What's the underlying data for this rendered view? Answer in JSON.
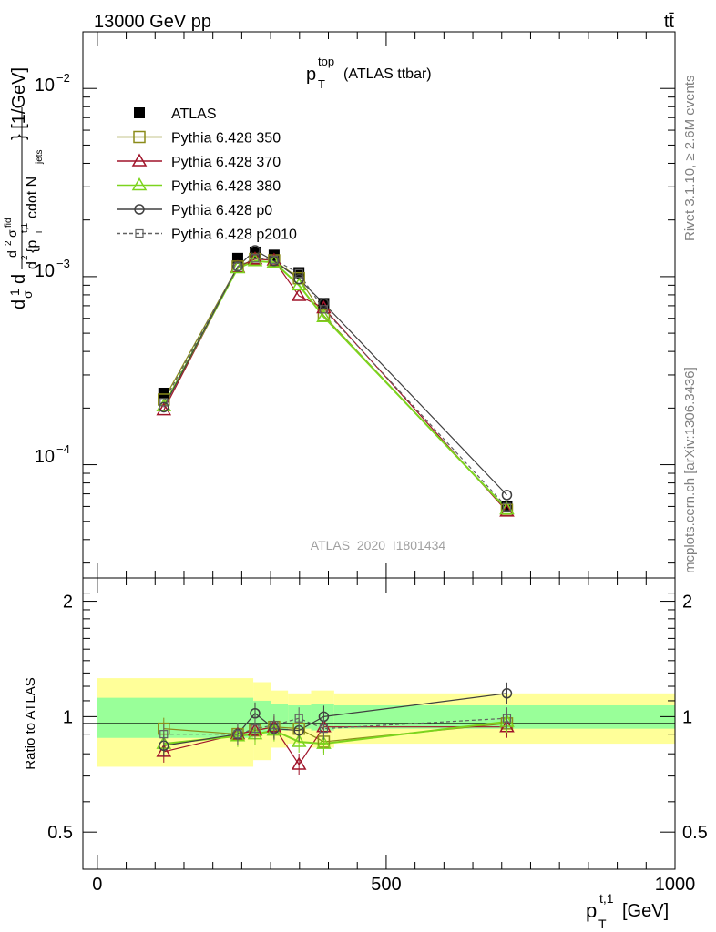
{
  "header": {
    "energy_label": "13000 GeV pp",
    "process_label": "tt̄",
    "title_main": "p",
    "title_sup": "top",
    "title_sub": "T",
    "title_suffix": "(ATLAS ttbar)",
    "analysis_id": "ATLAS_2020_I1801434",
    "side_rivet": "Rivet 3.1.10, ≥ 2.6M events",
    "side_mcplots": "mcplots.cern.ch [arXiv:1306.3436]"
  },
  "axes": {
    "ylabel_main": "d²σ^{fid} / (dp_T^{t,1} d N_jets) / σ [1/GeV]",
    "ylabel_ratio": "Ratio to ATLAS",
    "xlabel": "p_T^{t,1} [GeV]",
    "xlabel_p": "p",
    "xlabel_sub": "T",
    "xlabel_sup": "t,1",
    "xlabel_unit": "[GeV]",
    "ylabel_d": "d",
    "ylabel_1": "1",
    "ylabel_sigma": "σ",
    "ylabel_d2": "d",
    "ylabel_d2sup": "2",
    "ylabel_sigfid": "σ",
    "ylabel_sigfid_sup": "fid",
    "ylabel_bottom": "d",
    "ylabel_bottom2": "2",
    "ylabel_brace": "{p",
    "ylabel_brace_sub": "T",
    "ylabel_brace_sup": "t,1",
    "ylabel_cdot": "cdot N",
    "ylabel_jets": "jets",
    "ylabel_close": "} [1/GeV]",
    "main_ytick_base": "10",
    "main_ytick_exp_top": "−2",
    "main_ytick_exp_mid": "−3",
    "main_ytick_exp_bot": "−4",
    "ratio_yticks": [
      "0.5",
      "1",
      "2"
    ],
    "xticks": [
      "0",
      "500",
      "1000"
    ],
    "xlim": [
      -25,
      1000
    ],
    "ylim_main": [
      2.5e-05,
      0.02
    ],
    "ylim_ratio": [
      0.4,
      2.3
    ]
  },
  "legend": [
    {
      "label": "ATLAS",
      "color": "#000000",
      "marker": "filled-square",
      "dashed": false
    },
    {
      "label": "Pythia 6.428 350",
      "color": "#8b8b1a",
      "marker": "open-square",
      "dashed": false
    },
    {
      "label": "Pythia 6.428 370",
      "color": "#a0142a",
      "marker": "open-triangle",
      "dashed": false
    },
    {
      "label": "Pythia 6.428 380",
      "color": "#7cd41e",
      "marker": "open-triangle",
      "dashed": false
    },
    {
      "label": "Pythia 6.428 p0",
      "color": "#404040",
      "marker": "open-circle",
      "dashed": false
    },
    {
      "label": "Pythia 6.428 p2010",
      "color": "#606060",
      "marker": "open-square-small",
      "dashed": true
    }
  ],
  "chart_data": {
    "type": "scatter",
    "x_scale": "linear",
    "y_scale": "log",
    "bins": [
      [
        0,
        230
      ],
      [
        230,
        270
      ],
      [
        270,
        300
      ],
      [
        300,
        330
      ],
      [
        330,
        370
      ],
      [
        370,
        410
      ],
      [
        410,
        1000
      ]
    ],
    "x": [
      115,
      243,
      273,
      306,
      349,
      392,
      709
    ],
    "uncertainty_band": {
      "inner": [
        0.12,
        0.12,
        0.1,
        0.08,
        0.07,
        0.08,
        0.07
      ],
      "outer": [
        0.26,
        0.26,
        0.23,
        0.17,
        0.15,
        0.17,
        0.15
      ]
    },
    "series": [
      {
        "name": "ATLAS",
        "values": [
          0.00024,
          0.00125,
          0.00135,
          0.0013,
          0.00105,
          0.00072,
          6e-05
        ]
      },
      {
        "name": "Pythia 6.428 350",
        "values": [
          0.000222,
          0.00113,
          0.00124,
          0.00122,
          0.00098,
          0.00062,
          5.75e-05
        ]
      },
      {
        "name": "Pythia 6.428 370",
        "values": [
          0.000195,
          0.00112,
          0.00124,
          0.00122,
          0.00079,
          0.00068,
          5.65e-05
        ]
      },
      {
        "name": "Pythia 6.428 380",
        "values": [
          0.000205,
          0.00111,
          0.00121,
          0.00119,
          0.0009,
          0.00061,
          5.8e-05
        ]
      },
      {
        "name": "Pythia 6.428 p0",
        "values": [
          0.000202,
          0.00113,
          0.00138,
          0.00121,
          0.00097,
          0.00072,
          6.9e-05
        ]
      },
      {
        "name": "Pythia 6.428 p2010",
        "values": [
          0.000215,
          0.00113,
          0.00125,
          0.00123,
          0.00104,
          0.00067,
          5.95e-05
        ]
      }
    ],
    "ratio_series": [
      {
        "name": "Pythia 6.428 350",
        "values": [
          0.93,
          0.9,
          0.92,
          0.94,
          0.93,
          0.86,
          0.96
        ]
      },
      {
        "name": "Pythia 6.428 370",
        "values": [
          0.81,
          0.9,
          0.92,
          0.94,
          0.75,
          0.94,
          0.94
        ]
      },
      {
        "name": "Pythia 6.428 380",
        "values": [
          0.85,
          0.89,
          0.9,
          0.92,
          0.86,
          0.85,
          0.97
        ]
      },
      {
        "name": "Pythia 6.428 p0",
        "values": [
          0.84,
          0.9,
          1.02,
          0.93,
          0.92,
          1.0,
          1.15
        ]
      },
      {
        "name": "Pythia 6.428 p2010",
        "values": [
          0.9,
          0.9,
          0.93,
          0.95,
          0.99,
          0.93,
          0.99
        ]
      }
    ]
  }
}
